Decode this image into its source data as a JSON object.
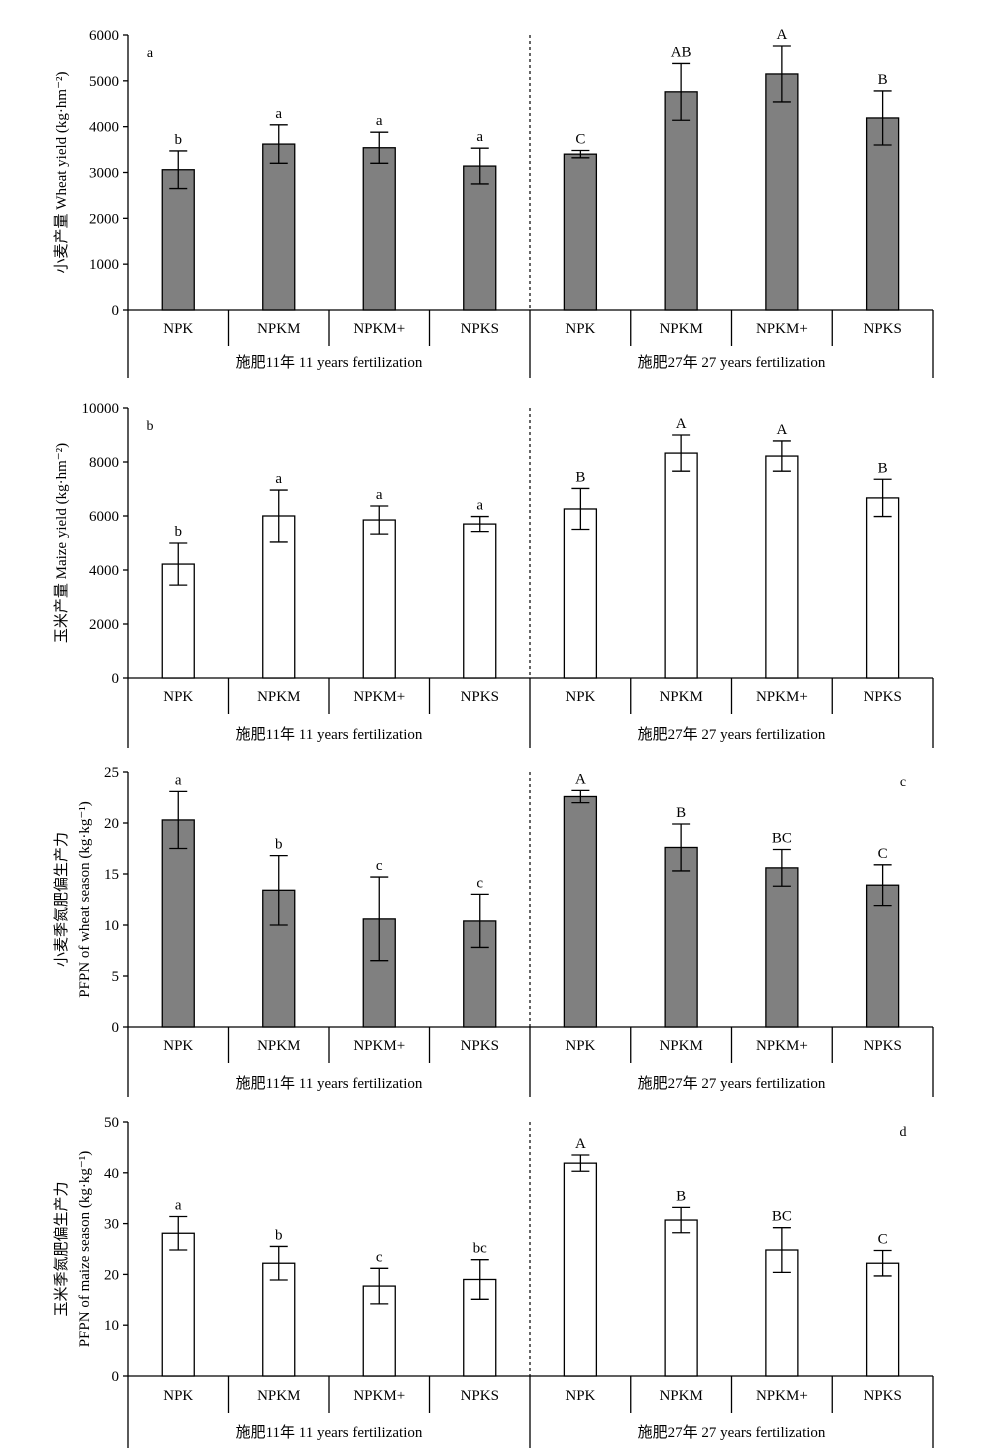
{
  "chart_data": [
    {
      "type": "bar",
      "panel_label": "a",
      "panel_label_position": "top-left",
      "ylabel": [
        "小麦产量 Wheat yield (kg·hm⁻²)"
      ],
      "ylim": [
        0,
        6000
      ],
      "yticks": [
        0,
        1000,
        2000,
        3000,
        4000,
        5000,
        6000
      ],
      "bar_color": "#808080",
      "groups": [
        {
          "label": "施肥11年 11 years fertilization",
          "bars": [
            {
              "category": "NPK",
              "value": 3060,
              "error": 410,
              "letter": "b"
            },
            {
              "category": "NPKM",
              "value": 3620,
              "error": 420,
              "letter": "a"
            },
            {
              "category": "NPKM+",
              "value": 3540,
              "error": 340,
              "letter": "a"
            },
            {
              "category": "NPKS",
              "value": 3140,
              "error": 390,
              "letter": "a"
            }
          ]
        },
        {
          "label": "施肥27年 27 years fertilization",
          "bars": [
            {
              "category": "NPK",
              "value": 3400,
              "error": 80,
              "letter": "C"
            },
            {
              "category": "NPKM",
              "value": 4760,
              "error": 620,
              "letter": "AB"
            },
            {
              "category": "NPKM+",
              "value": 5150,
              "error": 610,
              "letter": "A"
            },
            {
              "category": "NPKS",
              "value": 4190,
              "error": 590,
              "letter": "B"
            }
          ]
        }
      ]
    },
    {
      "type": "bar",
      "panel_label": "b",
      "panel_label_position": "top-left",
      "ylabel": [
        "玉米产量 Maize yield (kg·hm⁻²)"
      ],
      "ylim": [
        0,
        10000
      ],
      "yticks": [
        0,
        2000,
        4000,
        6000,
        8000,
        10000
      ],
      "bar_color": "#ffffff",
      "groups": [
        {
          "label": "施肥11年 11 years fertilization",
          "bars": [
            {
              "category": "NPK",
              "value": 4220,
              "error": 780,
              "letter": "b"
            },
            {
              "category": "NPKM",
              "value": 6000,
              "error": 960,
              "letter": "a"
            },
            {
              "category": "NPKM+",
              "value": 5850,
              "error": 520,
              "letter": "a"
            },
            {
              "category": "NPKS",
              "value": 5700,
              "error": 280,
              "letter": "a"
            }
          ]
        },
        {
          "label": "施肥27年 27 years fertilization",
          "bars": [
            {
              "category": "NPK",
              "value": 6260,
              "error": 760,
              "letter": "B"
            },
            {
              "category": "NPKM",
              "value": 8330,
              "error": 670,
              "letter": "A"
            },
            {
              "category": "NPKM+",
              "value": 8220,
              "error": 560,
              "letter": "A"
            },
            {
              "category": "NPKS",
              "value": 6670,
              "error": 690,
              "letter": "B"
            }
          ]
        }
      ]
    },
    {
      "type": "bar",
      "panel_label": "c",
      "panel_label_position": "top-right",
      "ylabel": [
        "小麦季氮肥偏生产力",
        "PFPN of wheat season (kg·kg⁻¹)"
      ],
      "ylim": [
        0,
        25
      ],
      "yticks": [
        0,
        5,
        10,
        15,
        20,
        25
      ],
      "bar_color": "#808080",
      "groups": [
        {
          "label": "施肥11年 11 years fertilization",
          "bars": [
            {
              "category": "NPK",
              "value": 20.3,
              "error": 2.8,
              "letter": "a"
            },
            {
              "category": "NPKM",
              "value": 13.4,
              "error": 3.4,
              "letter": "b"
            },
            {
              "category": "NPKM+",
              "value": 10.6,
              "error": 4.1,
              "letter": "c"
            },
            {
              "category": "NPKS",
              "value": 10.4,
              "error": 2.6,
              "letter": "c"
            }
          ]
        },
        {
          "label": "施肥27年 27 years fertilization",
          "bars": [
            {
              "category": "NPK",
              "value": 22.6,
              "error": 0.6,
              "letter": "A"
            },
            {
              "category": "NPKM",
              "value": 17.6,
              "error": 2.3,
              "letter": "B"
            },
            {
              "category": "NPKM+",
              "value": 15.6,
              "error": 1.8,
              "letter": "BC"
            },
            {
              "category": "NPKS",
              "value": 13.9,
              "error": 2.0,
              "letter": "C"
            }
          ]
        }
      ]
    },
    {
      "type": "bar",
      "panel_label": "d",
      "panel_label_position": "top-right",
      "ylabel": [
        "玉米季氮肥偏生产力",
        "PFPN of maize season (kg·kg⁻¹)"
      ],
      "ylim": [
        0,
        50
      ],
      "yticks": [
        0,
        10,
        20,
        30,
        40,
        50
      ],
      "bar_color": "#ffffff",
      "groups": [
        {
          "label": "施肥11年 11 years fertilization",
          "bars": [
            {
              "category": "NPK",
              "value": 28.1,
              "error": 3.3,
              "letter": "a"
            },
            {
              "category": "NPKM",
              "value": 22.2,
              "error": 3.3,
              "letter": "b"
            },
            {
              "category": "NPKM+",
              "value": 17.7,
              "error": 3.5,
              "letter": "c"
            },
            {
              "category": "NPKS",
              "value": 19.0,
              "error": 3.9,
              "letter": "bc"
            }
          ]
        },
        {
          "label": "施肥27年 27 years fertilization",
          "bars": [
            {
              "category": "NPK",
              "value": 41.9,
              "error": 1.6,
              "letter": "A"
            },
            {
              "category": "NPKM",
              "value": 30.7,
              "error": 2.5,
              "letter": "B"
            },
            {
              "category": "NPKM+",
              "value": 24.8,
              "error": 4.4,
              "letter": "BC"
            },
            {
              "category": "NPKS",
              "value": 22.2,
              "error": 2.5,
              "letter": "C"
            }
          ]
        }
      ]
    }
  ]
}
